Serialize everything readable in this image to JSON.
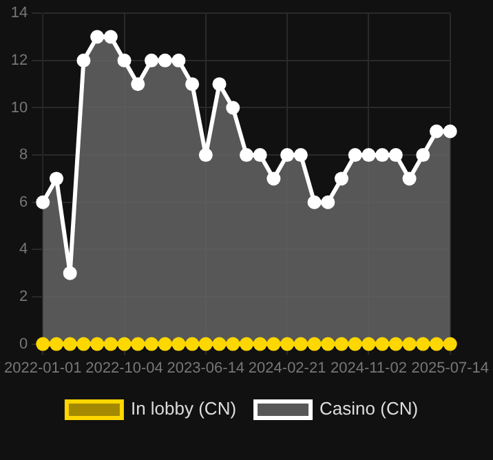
{
  "chart_data": {
    "type": "area",
    "categories": [
      "2022-01-01",
      null,
      null,
      null,
      null,
      null,
      "2022-10-04",
      null,
      null,
      null,
      null,
      null,
      "2023-06-14",
      null,
      null,
      null,
      null,
      null,
      "2024-02-21",
      null,
      null,
      null,
      null,
      null,
      "2024-11-02",
      null,
      null,
      null,
      null,
      null,
      "2025-07-14"
    ],
    "series": [
      {
        "name": "In lobby (CN)",
        "type": "line",
        "color": "#ffd700",
        "values": [
          0,
          0,
          0,
          0,
          0,
          0,
          0,
          0,
          0,
          0,
          0,
          0,
          0,
          0,
          0,
          0,
          0,
          0,
          0,
          0,
          0,
          0,
          0,
          0,
          0,
          0,
          0,
          0,
          0,
          0,
          0
        ]
      },
      {
        "name": "Casino (CN)",
        "color": "#ffffff",
        "values": [
          6,
          7,
          3,
          12,
          13,
          13,
          12,
          11,
          12,
          12,
          12,
          11,
          8,
          11,
          10,
          8,
          8,
          7,
          8,
          8,
          6,
          6,
          7,
          8,
          8,
          8,
          8,
          7,
          8,
          9,
          9
        ]
      }
    ],
    "ylim": [
      0,
      14
    ],
    "yticks": [
      0,
      2,
      4,
      6,
      8,
      10,
      12,
      14
    ],
    "grid": true,
    "legend": "bottom",
    "marker": "circle"
  }
}
